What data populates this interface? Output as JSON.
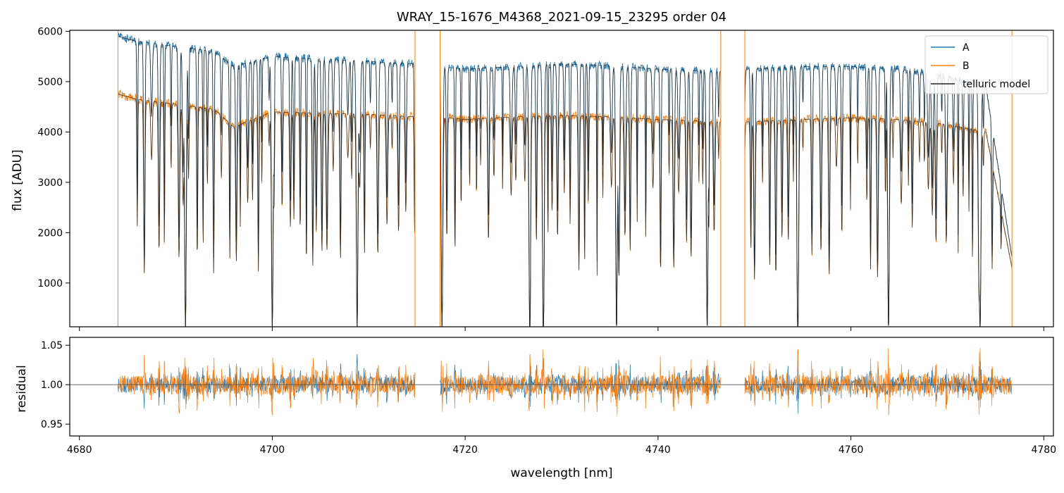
{
  "chart_data": [
    {
      "type": "line",
      "panel": "spectrum",
      "title": "WRAY_15-1676_M4368_2021-09-15_23295  order 04",
      "xlabel": "",
      "ylabel": "flux [ADU]",
      "xlim": [
        4679,
        4781
      ],
      "ylim": [
        130,
        6020
      ],
      "yticks": [
        1000,
        2000,
        3000,
        4000,
        5000,
        6000
      ],
      "xticks": [
        4680,
        4700,
        4720,
        4740,
        4760,
        4780
      ],
      "xtick_labels_shown": false,
      "grid": false,
      "legend_position": "top-right",
      "legend": [
        "A",
        "B",
        "telluric model"
      ],
      "colors": {
        "A": "#1f77b4",
        "B": "#ff7f0e",
        "telluric model": "#222222"
      },
      "segments": [
        {
          "x_start": 4684.0,
          "x_end": 4714.8
        },
        {
          "x_start": 4717.4,
          "x_end": 4746.5
        },
        {
          "x_start": 4749.0,
          "x_end": 4776.7
        }
      ],
      "series": [
        {
          "name": "A",
          "continuum": [
            [
              4684.0,
              5900
            ],
            [
              4686,
              5800
            ],
            [
              4690,
              5700
            ],
            [
              4694,
              5600
            ],
            [
              4696,
              5300
            ],
            [
              4700,
              5500
            ],
            [
              4710,
              5400
            ],
            [
              4714.8,
              5350
            ],
            [
              4717.4,
              5300
            ],
            [
              4720,
              5250
            ],
            [
              4725,
              5300
            ],
            [
              4730,
              5350
            ],
            [
              4735,
              5320
            ],
            [
              4740,
              5250
            ],
            [
              4746.5,
              5200
            ],
            [
              4749,
              5250
            ],
            [
              4755,
              5300
            ],
            [
              4760,
              5300
            ],
            [
              4765,
              5250
            ],
            [
              4770,
              5100
            ],
            [
              4774,
              4900
            ],
            [
              4776.7,
              1500
            ]
          ]
        },
        {
          "name": "B",
          "continuum": [
            [
              4684.0,
              4750
            ],
            [
              4686,
              4650
            ],
            [
              4690,
              4550
            ],
            [
              4694,
              4450
            ],
            [
              4696,
              4100
            ],
            [
              4700,
              4400
            ],
            [
              4710,
              4350
            ],
            [
              4714.8,
              4300
            ],
            [
              4717.4,
              4300
            ],
            [
              4720,
              4250
            ],
            [
              4725,
              4300
            ],
            [
              4730,
              4330
            ],
            [
              4735,
              4300
            ],
            [
              4740,
              4250
            ],
            [
              4746.5,
              4200
            ],
            [
              4749,
              4200
            ],
            [
              4755,
              4250
            ],
            [
              4760,
              4280
            ],
            [
              4765,
              4250
            ],
            [
              4770,
              4150
            ],
            [
              4774,
              4000
            ],
            [
              4776.7,
              1300
            ]
          ]
        },
        {
          "name": "telluric model",
          "deep_lines": [
            4691.0,
            4700.0,
            4708.8,
            4717.6,
            4726.7,
            4728.1,
            4735.7,
            4745.1,
            4754.5,
            4763.9,
            4773.4
          ]
        }
      ]
    },
    {
      "type": "line",
      "panel": "residual",
      "xlabel": "wavelength [nm]",
      "ylabel": "residual",
      "xlim": [
        4679,
        4781
      ],
      "ylim": [
        0.935,
        1.06
      ],
      "yticks": [
        0.95,
        1.0,
        1.05
      ],
      "ytick_labels": [
        "0.95",
        "1.00",
        "1.05"
      ],
      "xticks": [
        4680,
        4700,
        4720,
        4740,
        4760,
        4780
      ],
      "xtick_labels": [
        "4680",
        "4700",
        "4720",
        "4740",
        "4760",
        "4780"
      ],
      "reference_line": 1.0,
      "series": [
        {
          "name": "A",
          "scatter": 0.02
        },
        {
          "name": "B",
          "scatter": 0.025
        }
      ]
    }
  ]
}
